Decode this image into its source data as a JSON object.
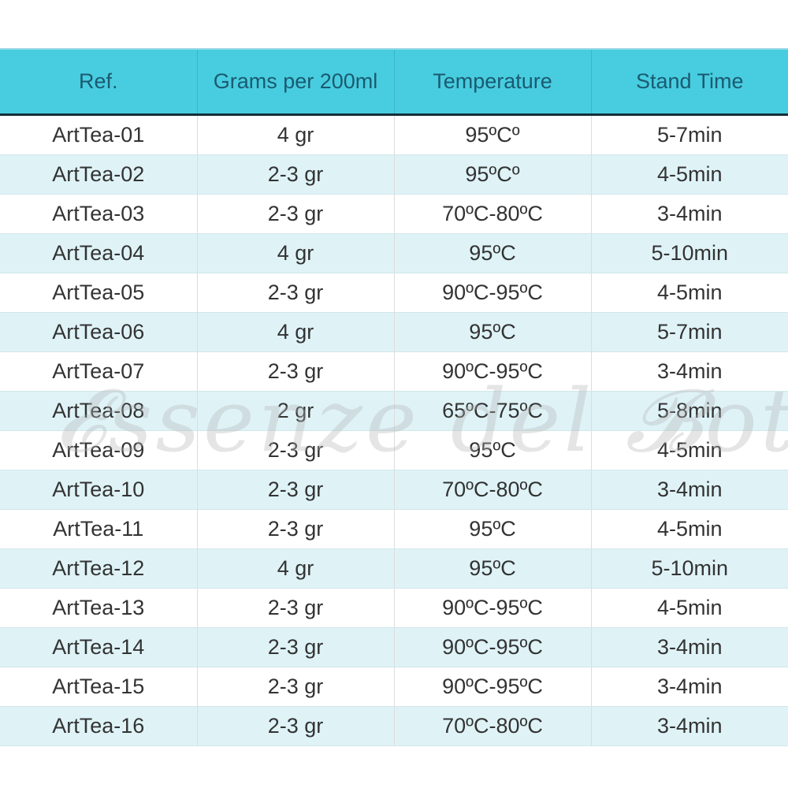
{
  "table": {
    "headers": [
      "Ref.",
      "Grams per 200ml",
      "Temperature",
      "Stand Time"
    ],
    "rows": [
      [
        "ArtTea-01",
        "4 gr",
        "95ºCº",
        "5-7min"
      ],
      [
        "ArtTea-02",
        "2-3 gr",
        "95ºCº",
        "4-5min"
      ],
      [
        "ArtTea-03",
        "2-3 gr",
        "70ºC-80ºC",
        "3-4min"
      ],
      [
        "ArtTea-04",
        "4 gr",
        "95ºC",
        "5-10min"
      ],
      [
        "ArtTea-05",
        "2-3 gr",
        "90ºC-95ºC",
        "4-5min"
      ],
      [
        "ArtTea-06",
        "4 gr",
        "95ºC",
        "5-7min"
      ],
      [
        "ArtTea-07",
        "2-3 gr",
        "90ºC-95ºC",
        "3-4min"
      ],
      [
        "ArtTea-08",
        "2 gr",
        "65ºC-75ºC",
        "5-8min"
      ],
      [
        "ArtTea-09",
        "2-3 gr",
        "95ºC",
        "4-5min"
      ],
      [
        "ArtTea-10",
        "2-3 gr",
        "70ºC-80ºC",
        "3-4min"
      ],
      [
        "ArtTea-11",
        "2-3 gr",
        "95ºC",
        "4-5min"
      ],
      [
        "ArtTea-12",
        "4 gr",
        "95ºC",
        "5-10min"
      ],
      [
        "ArtTea-13",
        "2-3 gr",
        "90ºC-95ºC",
        "4-5min"
      ],
      [
        "ArtTea-14",
        "2-3 gr",
        "90ºC-95ºC",
        "3-4min"
      ],
      [
        "ArtTea-15",
        "2-3 gr",
        "90ºC-95ºC",
        "3-4min"
      ],
      [
        "ArtTea-16",
        "2-3 gr",
        "70ºC-80ºC",
        "3-4min"
      ]
    ]
  },
  "watermark": "Essenze del Bottegaio",
  "colors": {
    "header_bg": "#48cde0",
    "header_text": "#1b5a70",
    "alt_row_bg": "#dff3f7"
  }
}
